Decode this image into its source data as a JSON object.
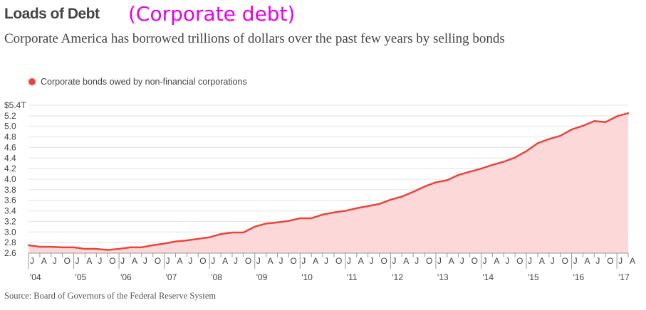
{
  "header": {
    "title": "Loads of Debt",
    "annotation": "(Corporate debt)",
    "subtitle": "Corporate America has borrowed trillions of dollars over the past few years by selling bonds"
  },
  "legend": {
    "label": "Corporate bonds owed by non-financial corporations"
  },
  "source": "Source: Board of Governors of the Federal Reserve System",
  "colors": {
    "line": "#e8453c",
    "fill": "#fdd8d8",
    "grid": "#e2e2e2",
    "axis": "#999999",
    "annotation": "#e800e8"
  },
  "chart_data": {
    "type": "area",
    "title": "Loads of Debt",
    "subtitle": "Corporate America has borrowed trillions of dollars over the past few years by selling bonds",
    "series": [
      {
        "name": "Corporate bonds owed by non-financial corporations",
        "values": [
          2.75,
          2.72,
          2.72,
          2.71,
          2.71,
          2.68,
          2.68,
          2.66,
          2.68,
          2.71,
          2.71,
          2.75,
          2.78,
          2.82,
          2.84,
          2.87,
          2.9,
          2.96,
          2.99,
          2.99,
          3.1,
          3.16,
          3.18,
          3.21,
          3.26,
          3.26,
          3.33,
          3.37,
          3.4,
          3.45,
          3.49,
          3.53,
          3.61,
          3.67,
          3.76,
          3.86,
          3.94,
          3.98,
          4.08,
          4.14,
          4.2,
          4.27,
          4.33,
          4.41,
          4.53,
          4.68,
          4.76,
          4.82,
          4.94,
          5.01,
          5.1,
          5.08,
          5.19,
          5.25
        ]
      }
    ],
    "x": [
      "2004-Q1",
      "2004-Q2",
      "2004-Q3",
      "2004-Q4",
      "2005-Q1",
      "2005-Q2",
      "2005-Q3",
      "2005-Q4",
      "2006-Q1",
      "2006-Q2",
      "2006-Q3",
      "2006-Q4",
      "2007-Q1",
      "2007-Q2",
      "2007-Q3",
      "2007-Q4",
      "2008-Q1",
      "2008-Q2",
      "2008-Q3",
      "2008-Q4",
      "2009-Q1",
      "2009-Q2",
      "2009-Q3",
      "2009-Q4",
      "2010-Q1",
      "2010-Q2",
      "2010-Q3",
      "2010-Q4",
      "2011-Q1",
      "2011-Q2",
      "2011-Q3",
      "2011-Q4",
      "2012-Q1",
      "2012-Q2",
      "2012-Q3",
      "2012-Q4",
      "2013-Q1",
      "2013-Q2",
      "2013-Q3",
      "2013-Q4",
      "2014-Q1",
      "2014-Q2",
      "2014-Q3",
      "2014-Q4",
      "2015-Q1",
      "2015-Q2",
      "2015-Q3",
      "2015-Q4",
      "2016-Q1",
      "2016-Q2",
      "2016-Q3",
      "2016-Q4",
      "2017-Q1",
      "2017-Q2"
    ],
    "ylim": [
      2.6,
      5.4
    ],
    "y_ticks": [
      "$5.4T",
      "5.2",
      "5.0",
      "4.8",
      "4.6",
      "4.4",
      "4.2",
      "4.0",
      "3.8",
      "3.6",
      "3.4",
      "3.2",
      "3.0",
      "2.8",
      "2.6"
    ],
    "x_month_ticks": [
      "J",
      "A",
      "J",
      "O",
      "J",
      "A",
      "J",
      "O",
      "J",
      "A",
      "J",
      "O",
      "J",
      "A",
      "J",
      "O",
      "J",
      "A",
      "J",
      "O",
      "J",
      "A",
      "J",
      "O",
      "J",
      "A",
      "J",
      "O",
      "J",
      "A",
      "J",
      "O",
      "J",
      "A",
      "J",
      "O",
      "J",
      "A",
      "J",
      "O",
      "J",
      "A",
      "J",
      "O",
      "J",
      "A",
      "J",
      "O",
      "J",
      "A",
      "J",
      "O",
      "J",
      "A"
    ],
    "x_year_ticks": [
      "'04",
      "'05",
      "'06",
      "'07",
      "'08",
      "'09",
      "'10",
      "'11",
      "'12",
      "'13",
      "'14",
      "'15",
      "'16",
      "'17"
    ],
    "grid": true,
    "legend_position": "top-left"
  }
}
